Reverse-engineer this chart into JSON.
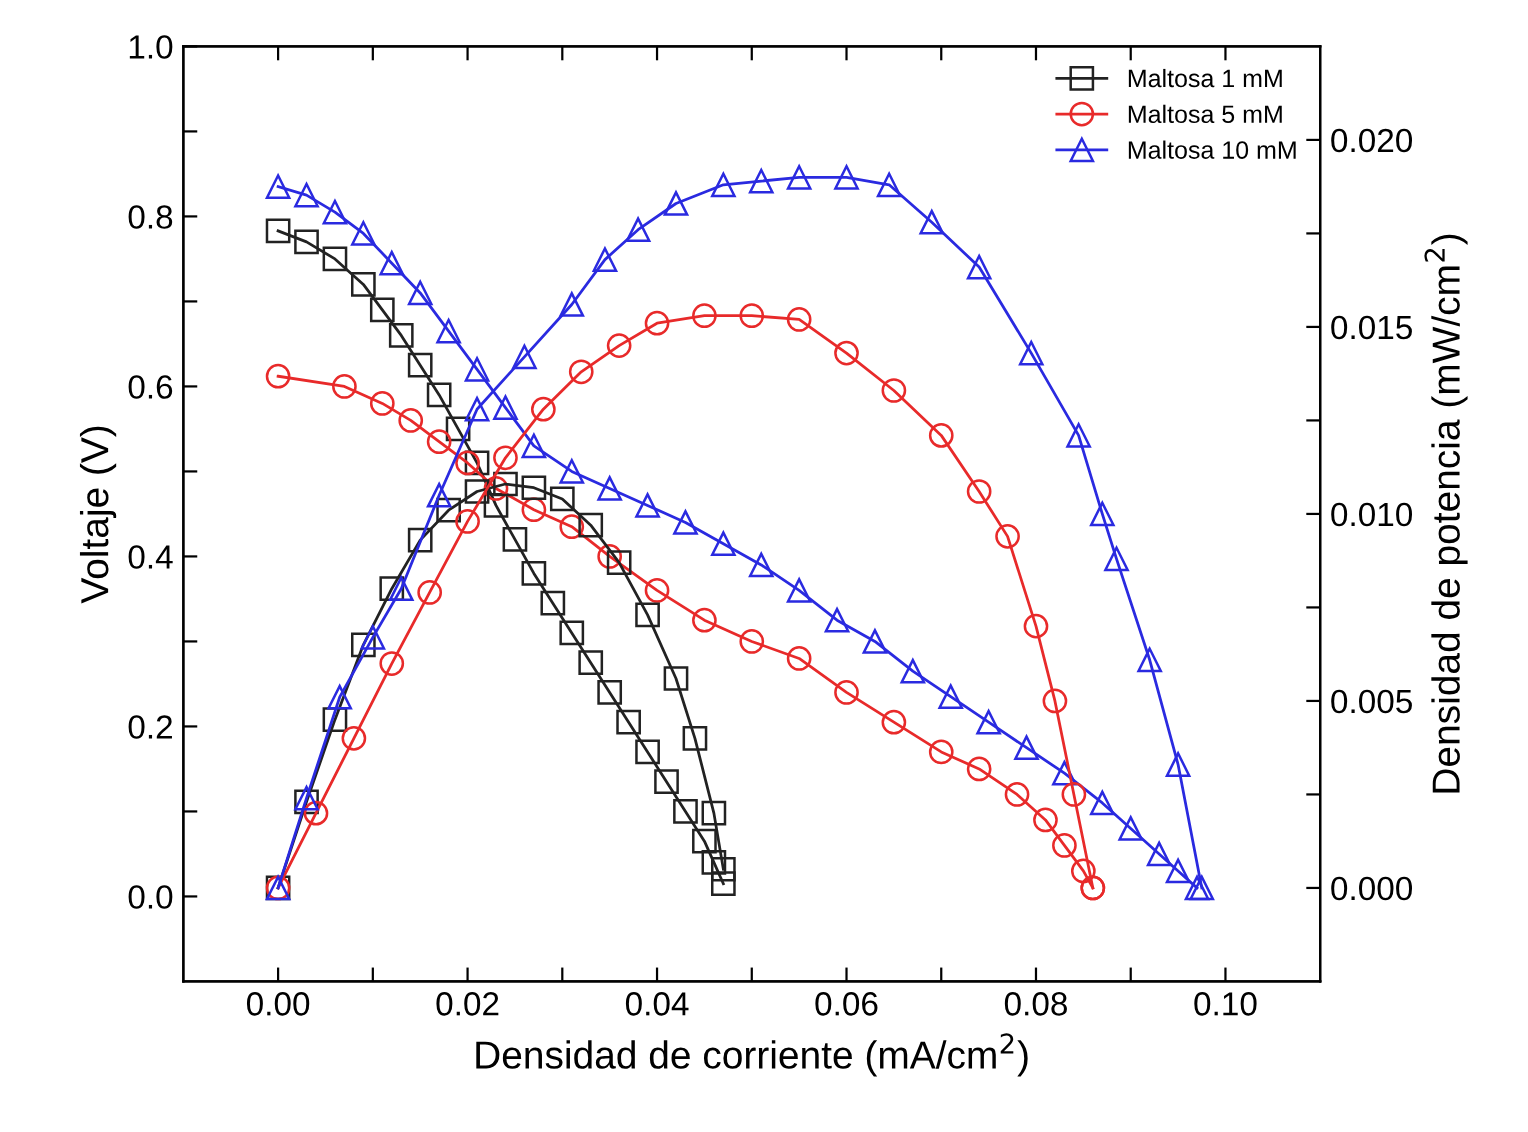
{
  "chart_data": {
    "type": "line",
    "xlabel": "Densidad de corriente (mA/cm$^{2}$)",
    "ylabel": "Voltaje (V)",
    "y2label": "Densidad de potencia (mW/cm$^{2}$)",
    "xlim": [
      -0.01,
      0.11
    ],
    "xticks": [
      {
        "value": 0,
        "label": "0.00"
      },
      {
        "value": 0.01,
        "label": null
      },
      {
        "value": 0.02,
        "label": "0.02"
      },
      {
        "value": 0.03,
        "label": null
      },
      {
        "value": 0.04,
        "label": "0.04"
      },
      {
        "value": 0.05,
        "label": null
      },
      {
        "value": 0.06,
        "label": "0.06"
      },
      {
        "value": 0.07,
        "label": null
      },
      {
        "value": 0.08,
        "label": "0.08"
      },
      {
        "value": 0.09,
        "label": null
      },
      {
        "value": 0.1,
        "label": "0.10"
      }
    ],
    "ylim": [
      -0.1,
      1.0
    ],
    "yticks": [
      {
        "value": 0,
        "label": "0.0"
      },
      {
        "value": 0.1,
        "label": null
      },
      {
        "value": 0.2,
        "label": "0.2"
      },
      {
        "value": 0.3,
        "label": null
      },
      {
        "value": 0.4,
        "label": "0.4"
      },
      {
        "value": 0.5,
        "label": null
      },
      {
        "value": 0.6,
        "label": "0.6"
      },
      {
        "value": 0.7,
        "label": null
      },
      {
        "value": 0.8,
        "label": "0.8"
      },
      {
        "value": 0.9,
        "label": null
      },
      {
        "value": 1.0,
        "label": "1.0"
      }
    ],
    "y2lim": [
      -0.0025,
      0.0225
    ],
    "y2ticks": [
      {
        "value": 0,
        "label": "0.000"
      },
      {
        "value": 0.0025,
        "label": null
      },
      {
        "value": 0.005,
        "label": "0.005"
      },
      {
        "value": 0.0075,
        "label": null
      },
      {
        "value": 0.01,
        "label": "0.010"
      },
      {
        "value": 0.0125,
        "label": null
      },
      {
        "value": 0.015,
        "label": "0.015"
      },
      {
        "value": 0.0175,
        "label": null
      },
      {
        "value": 0.02,
        "label": "0.020"
      }
    ],
    "grid": false,
    "legend": "top right",
    "line_style": "solid",
    "series": [
      {
        "name": "Maltosa 1 mM",
        "color": "#222222",
        "marker": "square",
        "x": [
          0,
          0.003,
          0.006,
          0.009,
          0.011,
          0.013,
          0.015,
          0.017,
          0.019,
          0.021,
          0.023,
          0.025,
          0.027,
          0.029,
          0.031,
          0.033,
          0.035,
          0.037,
          0.039,
          0.041,
          0.043,
          0.045,
          0.046,
          0.047
        ],
        "values": [
          0.783,
          0.77,
          0.75,
          0.72,
          0.69,
          0.66,
          0.625,
          0.59,
          0.55,
          0.51,
          0.46,
          0.42,
          0.38,
          0.345,
          0.31,
          0.275,
          0.24,
          0.205,
          0.17,
          0.135,
          0.1,
          0.065,
          0.04,
          0.015
        ]
      },
      {
        "name": "Maltosa 5 mM",
        "color": "#e82a2a",
        "marker": "circle",
        "x": [
          0,
          0.007,
          0.011,
          0.014,
          0.017,
          0.02,
          0.023,
          0.027,
          0.031,
          0.035,
          0.04,
          0.045,
          0.05,
          0.055,
          0.06,
          0.065,
          0.07,
          0.074,
          0.078,
          0.081,
          0.083,
          0.085,
          0.086
        ],
        "values": [
          0.612,
          0.6,
          0.58,
          0.56,
          0.535,
          0.51,
          0.48,
          0.455,
          0.435,
          0.4,
          0.36,
          0.325,
          0.3,
          0.28,
          0.24,
          0.205,
          0.17,
          0.15,
          0.12,
          0.09,
          0.06,
          0.03,
          0.01
        ]
      },
      {
        "name": "Maltosa 10 mM",
        "color": "#2a2ae0",
        "marker": "triangle",
        "x": [
          0,
          0.003,
          0.006,
          0.009,
          0.012,
          0.015,
          0.018,
          0.021,
          0.024,
          0.027,
          0.031,
          0.035,
          0.039,
          0.043,
          0.047,
          0.051,
          0.055,
          0.059,
          0.063,
          0.067,
          0.071,
          0.075,
          0.079,
          0.083,
          0.087,
          0.09,
          0.093,
          0.095,
          0.097
        ],
        "values": [
          0.835,
          0.825,
          0.805,
          0.78,
          0.745,
          0.71,
          0.665,
          0.62,
          0.575,
          0.53,
          0.5,
          0.48,
          0.46,
          0.44,
          0.415,
          0.39,
          0.36,
          0.325,
          0.3,
          0.265,
          0.235,
          0.205,
          0.175,
          0.145,
          0.11,
          0.08,
          0.05,
          0.03,
          0.01
        ]
      },
      {
        "axis": "y2",
        "color": "#222222",
        "marker": "square",
        "x": [
          0,
          0.003,
          0.006,
          0.009,
          0.012,
          0.015,
          0.018,
          0.021,
          0.024,
          0.027,
          0.03,
          0.033,
          0.036,
          0.039,
          0.042,
          0.044,
          0.046,
          0.047
        ],
        "values": [
          0,
          0.0023,
          0.0045,
          0.0065,
          0.008,
          0.0093,
          0.0101,
          0.0106,
          0.0108,
          0.0107,
          0.0104,
          0.0097,
          0.0087,
          0.0073,
          0.0056,
          0.004,
          0.002,
          0.0005
        ]
      },
      {
        "axis": "y2",
        "color": "#e82a2a",
        "marker": "circle",
        "x": [
          0,
          0.004,
          0.008,
          0.012,
          0.016,
          0.02,
          0.024,
          0.028,
          0.032,
          0.036,
          0.04,
          0.045,
          0.05,
          0.055,
          0.06,
          0.065,
          0.07,
          0.074,
          0.077,
          0.08,
          0.082,
          0.084,
          0.086
        ],
        "values": [
          0,
          0.002,
          0.004,
          0.006,
          0.0079,
          0.0098,
          0.0115,
          0.0128,
          0.0138,
          0.0145,
          0.0151,
          0.0153,
          0.0153,
          0.0152,
          0.0143,
          0.0133,
          0.0121,
          0.0106,
          0.0094,
          0.007,
          0.005,
          0.0025,
          0
        ]
      },
      {
        "axis": "y2",
        "color": "#2a2ae0",
        "marker": "triangle",
        "x": [
          0,
          0.003,
          0.0065,
          0.01,
          0.013,
          0.017,
          0.021,
          0.026,
          0.031,
          0.0345,
          0.038,
          0.042,
          0.047,
          0.051,
          0.055,
          0.06,
          0.0645,
          0.069,
          0.074,
          0.0795,
          0.0845,
          0.087,
          0.0885,
          0.092,
          0.095,
          0.0975
        ],
        "values": [
          0,
          0.0024,
          0.0051,
          0.0067,
          0.008,
          0.0105,
          0.0128,
          0.0142,
          0.0156,
          0.0168,
          0.0176,
          0.0183,
          0.0188,
          0.0189,
          0.019,
          0.019,
          0.0188,
          0.0178,
          0.0166,
          0.0143,
          0.0121,
          0.01,
          0.0088,
          0.0061,
          0.0033,
          0
        ]
      }
    ]
  }
}
